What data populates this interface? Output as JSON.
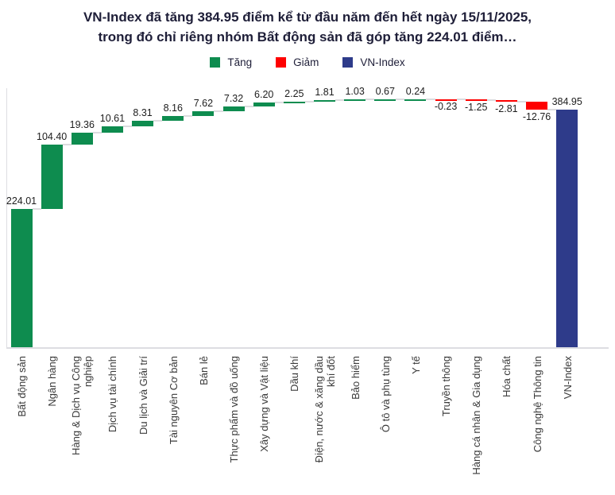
{
  "header": {
    "title_line1": "VN-Index đã tăng 384.95 điểm kể từ đầu năm đến hết ngày 15/11/2025,",
    "title_line2": "trong đó chỉ riêng nhóm Bất động sản đã góp tăng 224.01 điểm…"
  },
  "legend": {
    "items": [
      {
        "label": "Tăng",
        "color": "#0e8c4f"
      },
      {
        "label": "Giảm",
        "color": "#fe0000"
      },
      {
        "label": "VN-Index",
        "color": "#2e3b8a"
      }
    ]
  },
  "chart_data": {
    "type": "bar",
    "subtype": "waterfall",
    "title": "VN-Index đã tăng 384.95 điểm kể từ đầu năm đến hết ngày 15/11/2025, trong đó chỉ riêng nhóm Bất động sản đã góp tăng 224.01 điểm…",
    "xlabel": "",
    "ylabel": "",
    "ylim": [
      0,
      420
    ],
    "grid": false,
    "legend_position": "top",
    "categories": [
      "Bất động sản",
      "Ngân hàng",
      "Hàng & Dịch vụ Công\nnghiệp",
      "Dịch vụ tài chính",
      "Du lịch và Giải trí",
      "Tài nguyên Cơ bản",
      "Bán lẻ",
      "Thực phẩm và đồ uống",
      "Xây dựng và Vật liệu",
      "Dầu khí",
      "Điện, nước & xăng dầu\nkhí đốt",
      "Bảo hiểm",
      "Ô tô và phụ tùng",
      "Y tế",
      "Truyền thông",
      "Hàng cá nhân & Gia dụng",
      "Hóa chất",
      "Công nghệ Thông tin",
      "VN-Index"
    ],
    "values": [
      224.01,
      104.4,
      19.36,
      10.61,
      8.31,
      8.16,
      7.62,
      7.32,
      6.2,
      2.25,
      1.81,
      1.03,
      0.67,
      0.24,
      -0.23,
      -1.25,
      -2.81,
      -12.76,
      384.95
    ],
    "labels": [
      "224.01",
      "104.40",
      "19.36",
      "10.61",
      "8.31",
      "8.16",
      "7.62",
      "7.32",
      "6.20",
      "2.25",
      "1.81",
      "1.03",
      "0.67",
      "0.24",
      "-0.23",
      "-1.25",
      "-2.81",
      "-12.76",
      "384.95"
    ],
    "roles": [
      "up",
      "up",
      "up",
      "up",
      "up",
      "up",
      "up",
      "up",
      "up",
      "up",
      "up",
      "up",
      "up",
      "up",
      "down",
      "down",
      "down",
      "down",
      "total"
    ],
    "colors": {
      "up": "#0e8c4f",
      "down": "#fe0000",
      "total": "#2e3b8a",
      "connector": "#dcdcdf",
      "axis": "#dddde2"
    }
  }
}
